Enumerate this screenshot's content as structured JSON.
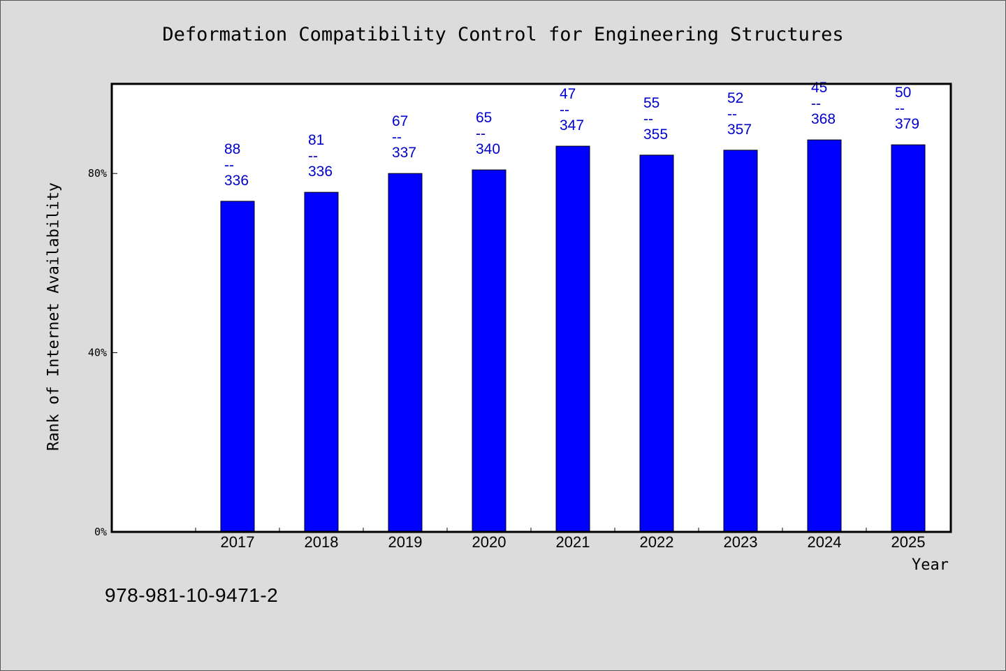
{
  "chart_data": {
    "type": "bar",
    "title": "Deformation Compatibility Control for Engineering Structures",
    "xlabel": "Year",
    "ylabel": "Rank of Internet Availability",
    "categories": [
      "2017",
      "2018",
      "2019",
      "2020",
      "2021",
      "2022",
      "2023",
      "2024",
      "2025"
    ],
    "series": [
      {
        "values": [
          73.8,
          75.8,
          80.0,
          80.8,
          86.1,
          84.1,
          85.2,
          87.5,
          86.4
        ],
        "color": "#0000ff"
      }
    ],
    "data_labels": [
      {
        "top": "88",
        "sep": "--",
        "bottom": "336"
      },
      {
        "top": "81",
        "sep": "--",
        "bottom": "336"
      },
      {
        "top": "67",
        "sep": "--",
        "bottom": "337"
      },
      {
        "top": "65",
        "sep": "--",
        "bottom": "340"
      },
      {
        "top": "47",
        "sep": "--",
        "bottom": "347"
      },
      {
        "top": "55",
        "sep": "--",
        "bottom": "355"
      },
      {
        "top": "52",
        "sep": "--",
        "bottom": "357"
      },
      {
        "top": "45",
        "sep": "--",
        "bottom": "368"
      },
      {
        "top": "50",
        "sep": "--",
        "bottom": "379"
      }
    ],
    "y_ticks": [
      "0%",
      "40%",
      "80%"
    ],
    "ylim": [
      0,
      100
    ],
    "grid": false,
    "label_color": "#0000cc"
  },
  "footnote": "978-981-10-9471-2"
}
